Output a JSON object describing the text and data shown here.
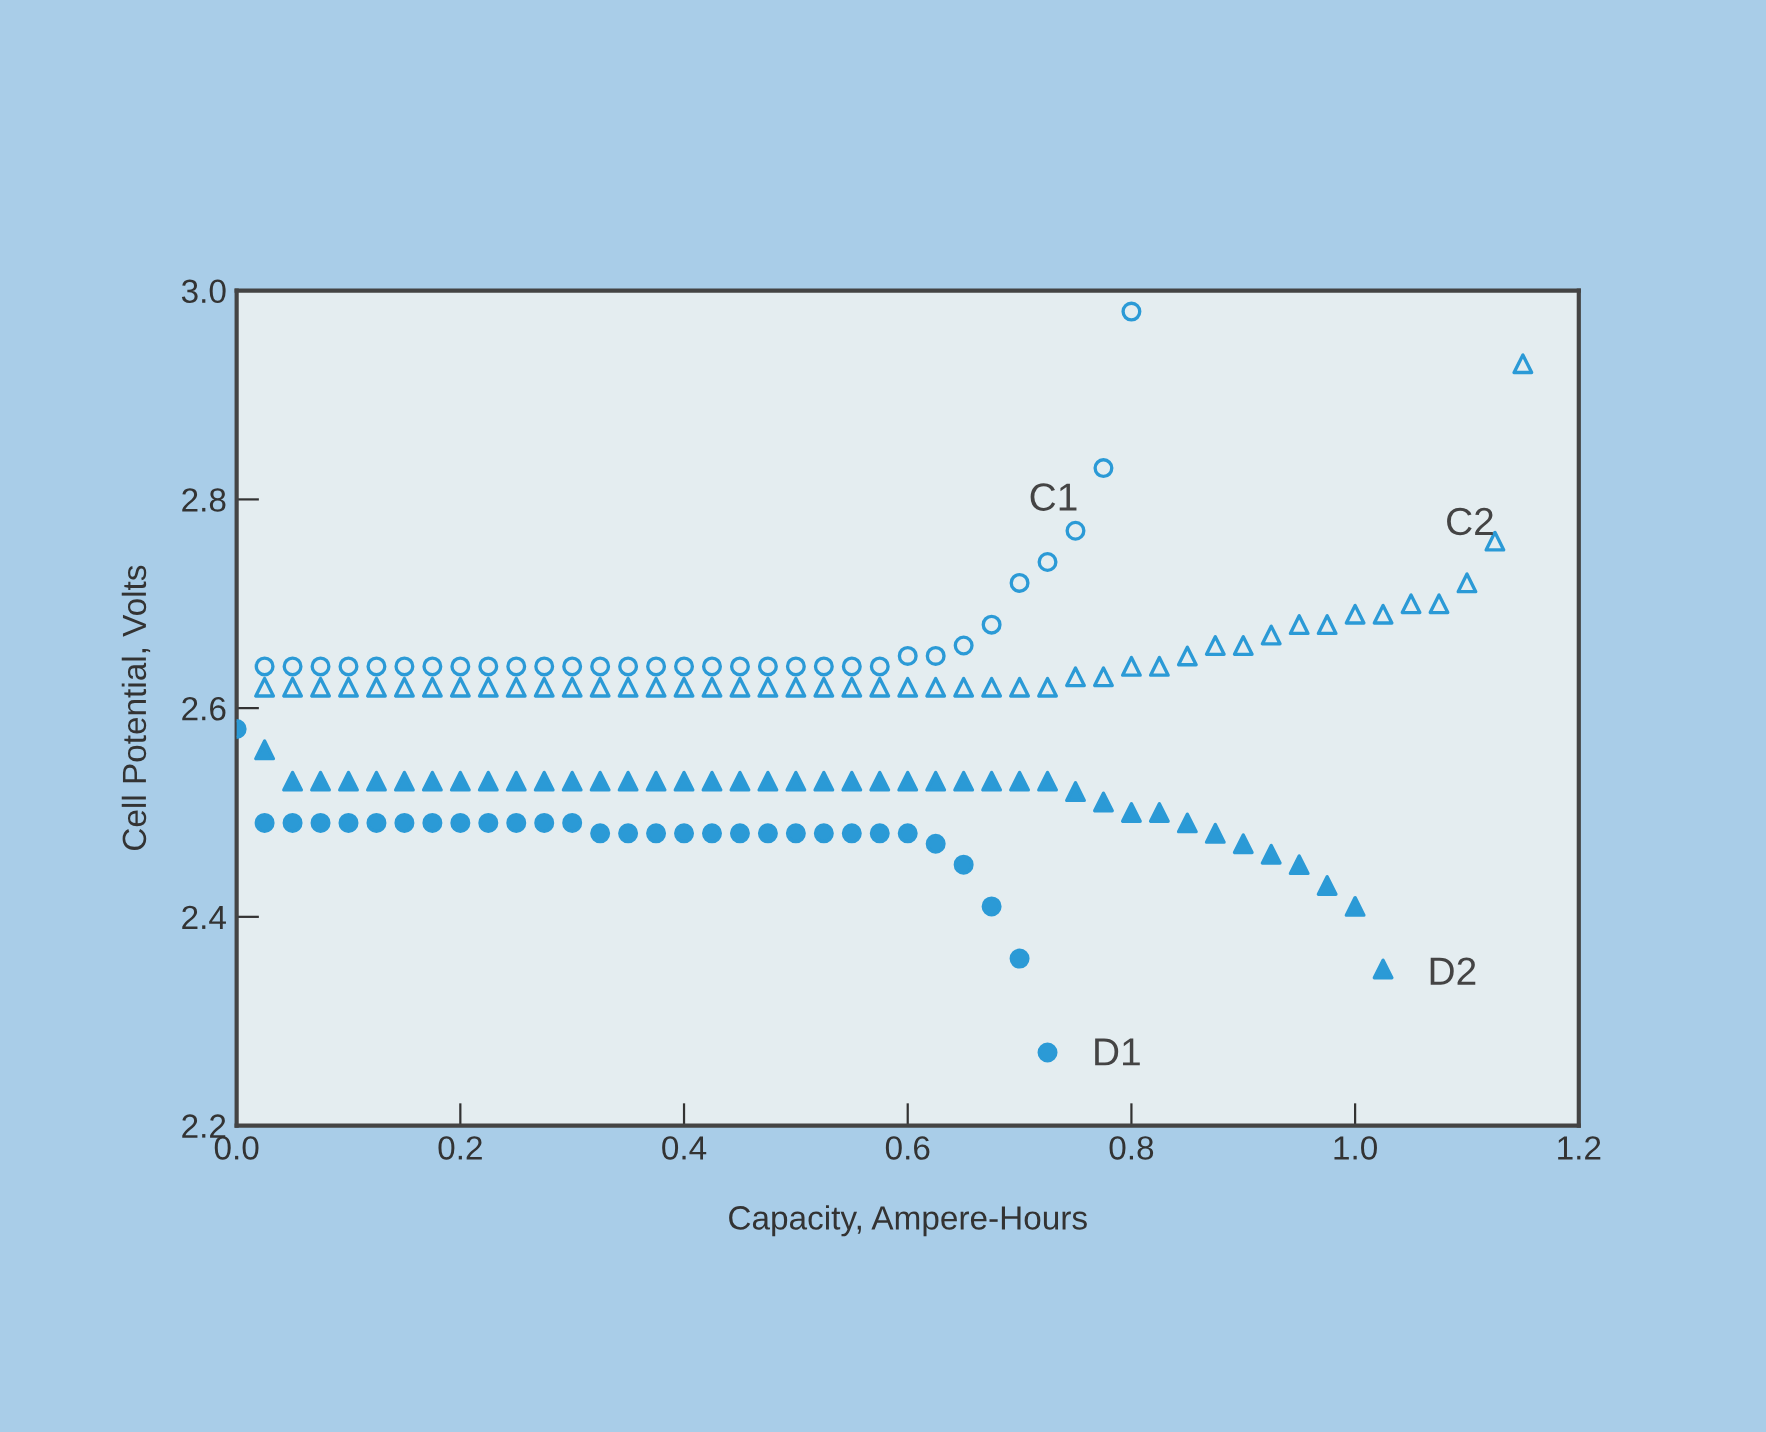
{
  "chart_data": {
    "type": "scatter",
    "xlabel": "Capacity, Ampere-Hours",
    "ylabel": "Cell Potential, Volts",
    "xlim": [
      0.0,
      1.2
    ],
    "ylim": [
      2.2,
      3.0
    ],
    "xticks": [
      {
        "value": 0,
        "label": "0.0"
      },
      0.2,
      0.4,
      0.6,
      0.8,
      {
        "value": 1,
        "label": "1.0"
      },
      1.2
    ],
    "yticks": [
      2.2,
      2.4,
      2.6,
      2.8,
      {
        "value": 3,
        "label": "3.0"
      }
    ],
    "grid": false,
    "legend": false,
    "series": [
      {
        "name": "C1",
        "marker": "circle",
        "color": "#2b9ad6",
        "x": [
          0.025,
          0.05,
          0.075,
          0.1,
          0.125,
          0.15,
          0.175,
          0.2,
          0.225,
          0.25,
          0.275,
          0.3,
          0.325,
          0.35,
          0.375,
          0.4,
          0.425,
          0.45,
          0.475,
          0.5,
          0.525,
          0.55,
          0.575,
          0.6,
          0.625,
          0.65,
          0.675,
          0.7,
          0.725,
          0.75,
          0.775,
          0.8
        ],
        "values": [
          2.64,
          2.64,
          2.64,
          2.64,
          2.64,
          2.64,
          2.64,
          2.64,
          2.64,
          2.64,
          2.64,
          2.64,
          2.64,
          2.64,
          2.64,
          2.64,
          2.64,
          2.64,
          2.64,
          2.64,
          2.64,
          2.64,
          2.64,
          2.65,
          2.65,
          2.66,
          2.68,
          2.72,
          2.74,
          2.77,
          2.83,
          2.98
        ]
      },
      {
        "name": "C2",
        "marker": "triangle",
        "color": "#2b9ad6",
        "x": [
          0.025,
          0.05,
          0.075,
          0.1,
          0.125,
          0.15,
          0.175,
          0.2,
          0.225,
          0.25,
          0.275,
          0.3,
          0.325,
          0.35,
          0.375,
          0.4,
          0.425,
          0.45,
          0.475,
          0.5,
          0.525,
          0.55,
          0.575,
          0.6,
          0.625,
          0.65,
          0.675,
          0.7,
          0.725,
          0.75,
          0.775,
          0.8,
          0.825,
          0.85,
          0.875,
          0.9,
          0.925,
          0.95,
          0.975,
          1.0,
          1.025,
          1.05,
          1.075,
          1.1,
          1.125,
          1.15
        ],
        "values": [
          2.62,
          2.62,
          2.62,
          2.62,
          2.62,
          2.62,
          2.62,
          2.62,
          2.62,
          2.62,
          2.62,
          2.62,
          2.62,
          2.62,
          2.62,
          2.62,
          2.62,
          2.62,
          2.62,
          2.62,
          2.62,
          2.62,
          2.62,
          2.62,
          2.62,
          2.62,
          2.62,
          2.62,
          2.62,
          2.63,
          2.63,
          2.64,
          2.64,
          2.65,
          2.66,
          2.66,
          2.67,
          2.68,
          2.68,
          2.69,
          2.69,
          2.7,
          2.7,
          2.72,
          2.76,
          2.93
        ]
      },
      {
        "name": "D2",
        "marker": "triangle",
        "color": "#2b9ad6",
        "x": [
          0.025,
          0.05,
          0.075,
          0.1,
          0.125,
          0.15,
          0.175,
          0.2,
          0.225,
          0.25,
          0.275,
          0.3,
          0.325,
          0.35,
          0.375,
          0.4,
          0.425,
          0.45,
          0.475,
          0.5,
          0.525,
          0.55,
          0.575,
          0.6,
          0.625,
          0.65,
          0.675,
          0.7,
          0.725,
          0.75,
          0.775,
          0.8,
          0.825,
          0.85,
          0.875,
          0.9,
          0.925,
          0.95,
          0.975,
          1.0,
          1.025
        ],
        "values": [
          2.56,
          2.53,
          2.53,
          2.53,
          2.53,
          2.53,
          2.53,
          2.53,
          2.53,
          2.53,
          2.53,
          2.53,
          2.53,
          2.53,
          2.53,
          2.53,
          2.53,
          2.53,
          2.53,
          2.53,
          2.53,
          2.53,
          2.53,
          2.53,
          2.53,
          2.53,
          2.53,
          2.53,
          2.53,
          2.52,
          2.51,
          2.5,
          2.5,
          2.49,
          2.48,
          2.47,
          2.46,
          2.45,
          2.43,
          2.41,
          2.35
        ]
      },
      {
        "name": "D1",
        "marker": "circle",
        "color": "#2b9ad6",
        "x": [
          0.0,
          0.025,
          0.05,
          0.075,
          0.1,
          0.125,
          0.15,
          0.175,
          0.2,
          0.225,
          0.25,
          0.275,
          0.3,
          0.325,
          0.35,
          0.375,
          0.4,
          0.425,
          0.45,
          0.475,
          0.5,
          0.525,
          0.55,
          0.575,
          0.6,
          0.625,
          0.65,
          0.675,
          0.7,
          0.725
        ],
        "values": [
          2.58,
          2.49,
          2.49,
          2.49,
          2.49,
          2.49,
          2.49,
          2.49,
          2.49,
          2.49,
          2.49,
          2.49,
          2.49,
          2.48,
          2.48,
          2.48,
          2.48,
          2.48,
          2.48,
          2.48,
          2.48,
          2.48,
          2.48,
          2.48,
          2.48,
          2.47,
          2.45,
          2.41,
          2.36,
          2.27
        ]
      }
    ]
  }
}
